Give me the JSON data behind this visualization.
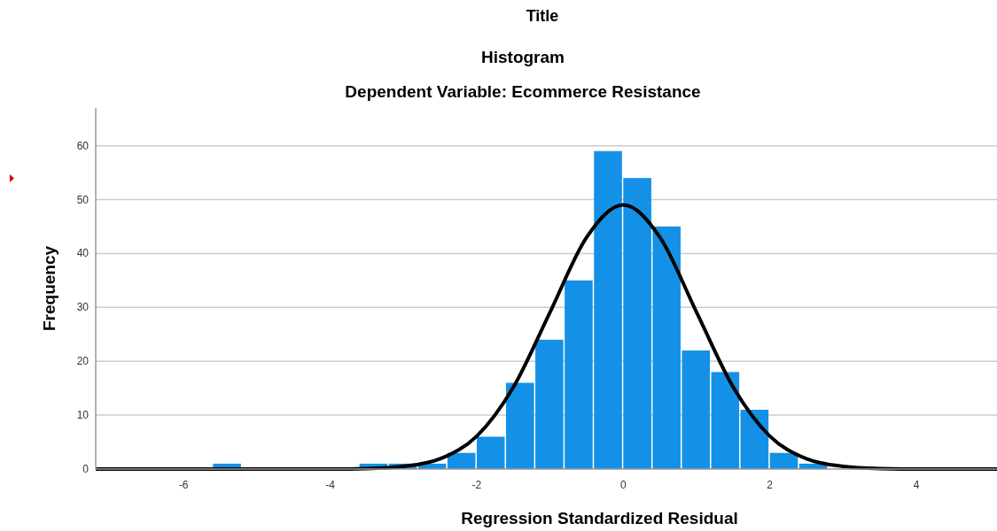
{
  "chart_data": {
    "type": "histogram",
    "title": "Histogram",
    "subtitle": "Dependent Variable: Ecommerce Resistance",
    "annotations": [
      "Title"
    ],
    "xlabel": "Regression Standardized Residual",
    "ylabel": "Frequency",
    "bins": [
      -5.6,
      -5.2,
      -4.8,
      -4.4,
      -4.0,
      -3.6,
      -3.2,
      -2.8,
      -2.4,
      -2.0,
      -1.6,
      -1.2,
      -0.8,
      -0.4,
      0,
      0.4,
      0.8,
      1.2,
      1.6,
      2.0,
      2.4,
      2.8
    ],
    "values": [
      1,
      0,
      0,
      0,
      0,
      1,
      1,
      1,
      3,
      6,
      16,
      24,
      35,
      59,
      54,
      45,
      22,
      18,
      11,
      3,
      1
    ],
    "color": "#1491e6",
    "series": [
      {
        "type": "line",
        "color": "#000000",
        "x": [
          -7.2,
          -4.5,
          -4,
          -3.5,
          -3,
          -2.5,
          -2,
          -1.5,
          -1,
          -0.5,
          0,
          0.5,
          1,
          1.5,
          2,
          2.5,
          3,
          3.5,
          4,
          4.5,
          5.1
        ],
        "values": [
          0,
          0,
          0,
          0.1,
          0.5,
          1.9,
          6.1,
          15.2,
          29.1,
          43,
          49,
          43,
          29.1,
          15.2,
          6.1,
          1.9,
          0.5,
          0.1,
          0,
          0,
          0
        ]
      }
    ],
    "xlim": [
      -7.2,
      5.1
    ],
    "xticks": [
      -6,
      -4,
      -2,
      0,
      2,
      4
    ],
    "ylim": [
      0,
      67
    ],
    "yticks": [
      0,
      10,
      20,
      30,
      40,
      50,
      60
    ],
    "grid": "y",
    "marker": "none",
    "line_style": "solid"
  }
}
